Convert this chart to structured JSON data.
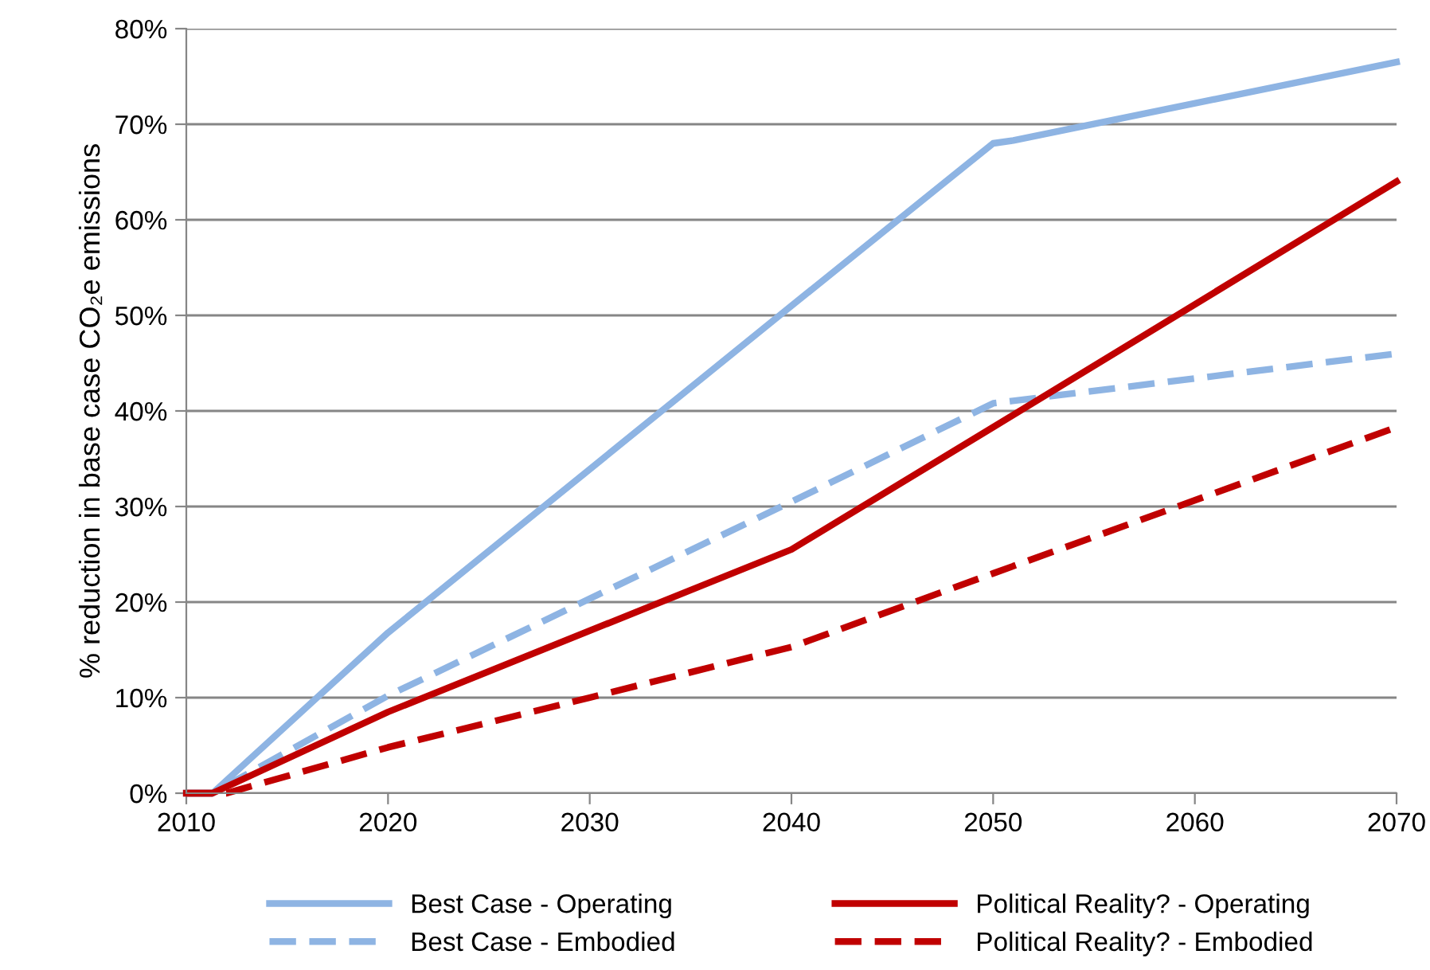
{
  "chart_data": {
    "type": "line",
    "ylabel": "% reduction in base case CO₂e emissions",
    "xlim": [
      2010,
      2070
    ],
    "xticks": [
      2010,
      2020,
      2030,
      2040,
      2050,
      2060,
      2070
    ],
    "ylim": [
      0,
      80
    ],
    "yticks": [
      {
        "value": 0,
        "label": "0%"
      },
      {
        "value": 10,
        "label": "10%"
      },
      {
        "value": 20,
        "label": "20%"
      },
      {
        "value": 30,
        "label": "30%"
      },
      {
        "value": 40,
        "label": "40%"
      },
      {
        "value": 50,
        "label": "50%"
      },
      {
        "value": 60,
        "label": "60%"
      },
      {
        "value": 70,
        "label": "70%"
      },
      {
        "value": 80,
        "label": "80%"
      }
    ],
    "grid": "y",
    "legend": "bottom",
    "marker": "none",
    "series": [
      {
        "name": "Best Case - Operating",
        "color": "#8eb4e3",
        "line_style": "solid",
        "x": [
          2010,
          2011.3,
          2020,
          2040,
          2050,
          2051,
          2070
        ],
        "values": [
          0,
          0,
          16.8,
          51,
          68,
          68.3,
          76.5
        ]
      },
      {
        "name": "Best Case - Embodied",
        "color": "#8eb4e3",
        "line_style": "dashed",
        "x": [
          2010,
          2011.3,
          2020,
          2040,
          2050,
          2070
        ],
        "values": [
          0,
          0,
          10.2,
          30.5,
          40.8,
          46
        ]
      },
      {
        "name": "Political Reality? - Operating",
        "color": "#c00000",
        "line_style": "solid",
        "x": [
          2010,
          2011.3,
          2020,
          2040,
          2050,
          2070
        ],
        "values": [
          0,
          0,
          8.5,
          25.5,
          38.3,
          64
        ]
      },
      {
        "name": "Political Reality? - Embodied",
        "color": "#c00000",
        "line_style": "dashed",
        "x": [
          2010,
          2012,
          2020,
          2030,
          2040,
          2050,
          2070
        ],
        "values": [
          0,
          0,
          4.8,
          10,
          15.3,
          23,
          38.3
        ]
      }
    ]
  }
}
